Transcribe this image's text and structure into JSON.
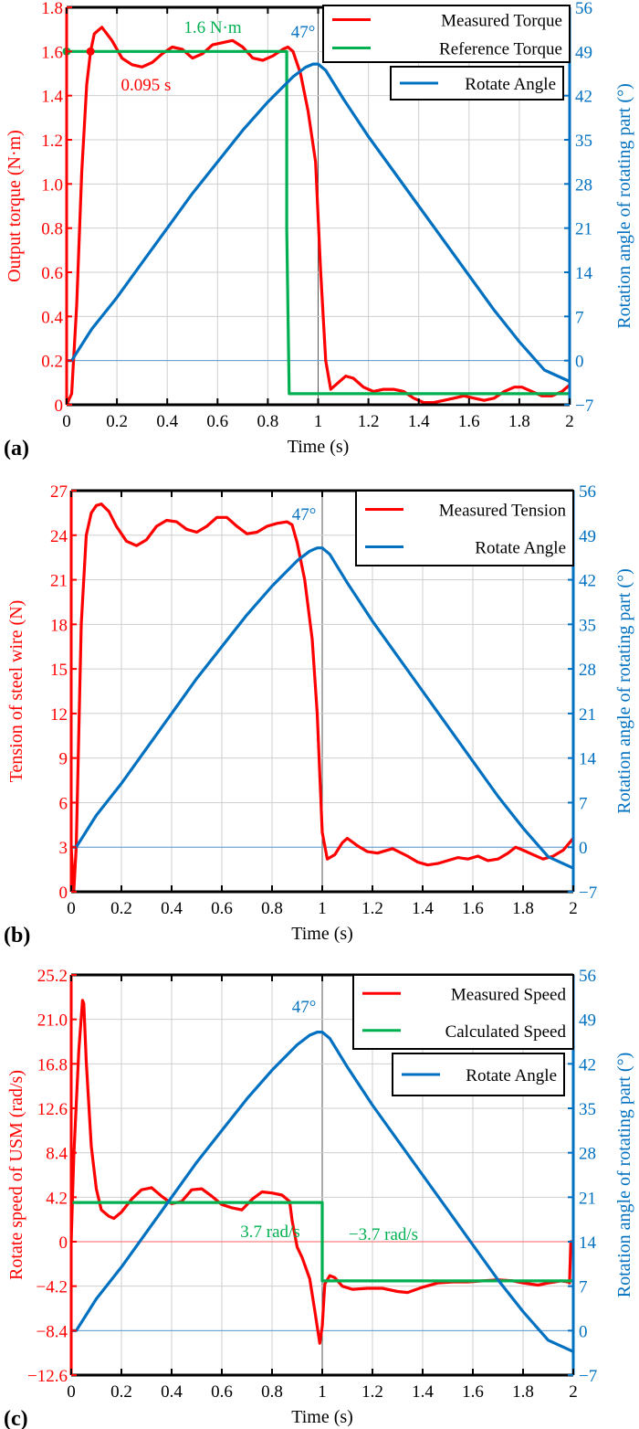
{
  "chart_data": [
    {
      "panel_label": "(a)",
      "type": "line",
      "xlabel": "Time (s)",
      "ylabel_left": "Output torque (N·m)",
      "ylabel_right": "Rotation angle of rotating part (°)",
      "xlim": [
        0,
        2
      ],
      "ylim_left": [
        0,
        1.8
      ],
      "ylim_right": [
        -7,
        56
      ],
      "x_ticks": [
        "0",
        "0.2",
        "0.4",
        "0.6",
        "0.8",
        "1",
        "1.2",
        "1.4",
        "1.6",
        "1.8",
        "2"
      ],
      "y_ticks_left": [
        "0",
        "0.2",
        "0.4",
        "0.6",
        "0.8",
        "1.0",
        "1.2",
        "1.4",
        "1.6",
        "1.8"
      ],
      "y_ticks_right": [
        "−7",
        "0",
        "7",
        "14",
        "21",
        "28",
        "35",
        "42",
        "49",
        "56"
      ],
      "grid": true,
      "legend_position": "top-right",
      "legend": [
        "Measured Torque",
        "Reference Torque"
      ],
      "legend2": [
        "Rotate Angle"
      ],
      "annotations": [
        {
          "text": "1.6 N·m",
          "color": "#00b050"
        },
        {
          "text": "47°",
          "color": "#0070c0"
        },
        {
          "text": "0.095 s",
          "color": "#ff0000"
        }
      ],
      "series": [
        {
          "name": "Measured Torque",
          "axis": "left",
          "color": "#ff0000",
          "x": [
            0,
            0.02,
            0.04,
            0.06,
            0.08,
            0.095,
            0.11,
            0.14,
            0.18,
            0.22,
            0.26,
            0.3,
            0.34,
            0.38,
            0.42,
            0.46,
            0.5,
            0.54,
            0.58,
            0.62,
            0.66,
            0.7,
            0.74,
            0.78,
            0.82,
            0.86,
            0.88,
            0.9,
            0.93,
            0.96,
            0.99,
            1.01,
            1.03,
            1.05,
            1.08,
            1.11,
            1.14,
            1.18,
            1.22,
            1.26,
            1.3,
            1.34,
            1.38,
            1.42,
            1.46,
            1.5,
            1.54,
            1.58,
            1.62,
            1.66,
            1.7,
            1.74,
            1.78,
            1.81,
            1.85,
            1.89,
            1.93,
            1.97,
            2.0
          ],
          "y": [
            0.0,
            0.05,
            0.45,
            1.05,
            1.45,
            1.6,
            1.68,
            1.71,
            1.65,
            1.57,
            1.54,
            1.53,
            1.55,
            1.59,
            1.62,
            1.61,
            1.57,
            1.59,
            1.63,
            1.64,
            1.65,
            1.62,
            1.57,
            1.56,
            1.58,
            1.61,
            1.62,
            1.6,
            1.5,
            1.33,
            1.1,
            0.6,
            0.2,
            0.07,
            0.1,
            0.13,
            0.12,
            0.08,
            0.06,
            0.07,
            0.07,
            0.06,
            0.03,
            0.01,
            0.01,
            0.02,
            0.03,
            0.04,
            0.03,
            0.02,
            0.03,
            0.06,
            0.08,
            0.08,
            0.06,
            0.04,
            0.04,
            0.06,
            0.09
          ]
        },
        {
          "name": "Reference Torque",
          "axis": "left",
          "color": "#00b050",
          "x": [
            0,
            0.875,
            0.875,
            0.885,
            2.0
          ],
          "y": [
            1.6,
            1.6,
            0.8,
            0.05,
            0.05
          ]
        },
        {
          "name": "Rotate Angle",
          "axis": "right",
          "color": "#0070c0",
          "x": [
            0,
            0.02,
            0.1,
            0.2,
            0.3,
            0.4,
            0.5,
            0.6,
            0.7,
            0.8,
            0.9,
            0.95,
            0.98,
            1.0,
            1.03,
            1.1,
            1.2,
            1.3,
            1.4,
            1.5,
            1.6,
            1.7,
            1.8,
            1.9,
            2.0
          ],
          "y": [
            0,
            0,
            5,
            10,
            15.5,
            21,
            26.5,
            31.5,
            36.5,
            41,
            45,
            46.5,
            47,
            47,
            46,
            41.5,
            35.5,
            30,
            24.5,
            19,
            13.5,
            8,
            3,
            -1.5,
            -3.3
          ]
        }
      ]
    },
    {
      "panel_label": "(b)",
      "type": "line",
      "xlabel": "Time (s)",
      "ylabel_left": "Tension of steel wire  (N)",
      "ylabel_right": "Rotation angle of rotating part (°)",
      "xlim": [
        0,
        2
      ],
      "ylim_left": [
        0,
        27
      ],
      "ylim_right": [
        -7,
        56
      ],
      "x_ticks": [
        "0",
        "0.2",
        "0.4",
        "0.6",
        "0.8",
        "1",
        "1.2",
        "1.4",
        "1.6",
        "1.8",
        "2"
      ],
      "y_ticks_left": [
        "0",
        "3",
        "6",
        "9",
        "12",
        "15",
        "18",
        "21",
        "24",
        "27"
      ],
      "y_ticks_right": [
        "−7",
        "0",
        "7",
        "14",
        "21",
        "28",
        "35",
        "42",
        "49",
        "56"
      ],
      "grid": true,
      "legend_position": "top-right",
      "legend": [
        "Measured Tension",
        "Rotate Angle"
      ],
      "annotations": [
        {
          "text": "47°",
          "color": "#0070c0"
        }
      ],
      "series": [
        {
          "name": "Measured Tension",
          "axis": "left",
          "color": "#ff0000",
          "x": [
            0,
            0.01,
            0.02,
            0.04,
            0.06,
            0.08,
            0.1,
            0.12,
            0.15,
            0.18,
            0.22,
            0.26,
            0.3,
            0.34,
            0.38,
            0.42,
            0.46,
            0.5,
            0.54,
            0.58,
            0.62,
            0.66,
            0.7,
            0.74,
            0.78,
            0.82,
            0.86,
            0.88,
            0.9,
            0.93,
            0.96,
            0.98,
            1.0,
            1.02,
            1.05,
            1.08,
            1.1,
            1.14,
            1.18,
            1.22,
            1.28,
            1.34,
            1.38,
            1.42,
            1.46,
            1.5,
            1.54,
            1.58,
            1.62,
            1.66,
            1.7,
            1.74,
            1.77,
            1.8,
            1.84,
            1.88,
            1.92,
            1.96,
            1.99,
            2.0
          ],
          "y": [
            3,
            0,
            3,
            18,
            24,
            25.5,
            26,
            26.1,
            25.6,
            24.6,
            23.6,
            23.3,
            23.7,
            24.6,
            25,
            24.9,
            24.4,
            24.2,
            24.6,
            25.2,
            25.2,
            24.6,
            24.1,
            24.2,
            24.6,
            24.8,
            24.9,
            24.7,
            23.5,
            21,
            17,
            12,
            4,
            2.2,
            2.5,
            3.3,
            3.6,
            3.1,
            2.7,
            2.6,
            2.9,
            2.4,
            2.0,
            1.8,
            1.9,
            2.1,
            2.3,
            2.2,
            2.4,
            2.1,
            2.2,
            2.6,
            3.0,
            2.8,
            2.5,
            2.2,
            2.4,
            2.8,
            3.4,
            3.6
          ]
        },
        {
          "name": "Rotate Angle",
          "axis": "right",
          "color": "#0070c0",
          "x": [
            0,
            0.02,
            0.1,
            0.2,
            0.3,
            0.4,
            0.5,
            0.6,
            0.7,
            0.8,
            0.9,
            0.95,
            0.98,
            1.0,
            1.03,
            1.1,
            1.2,
            1.3,
            1.4,
            1.5,
            1.6,
            1.7,
            1.8,
            1.9,
            2.0
          ],
          "y": [
            0,
            0,
            5,
            10,
            15.5,
            21,
            26.5,
            31.5,
            36.5,
            41,
            45,
            46.5,
            47,
            47,
            46,
            41.5,
            35.5,
            30,
            24.5,
            19,
            13.5,
            8,
            3,
            -1.5,
            -3.3
          ]
        }
      ]
    },
    {
      "panel_label": "(c)",
      "type": "line",
      "xlabel": "Time (s)",
      "ylabel_left": "Rotate speed of USM  (rad/s)",
      "ylabel_right": "Rotation angle of rotating part (°)",
      "xlim": [
        0,
        2
      ],
      "ylim_left": [
        -12.6,
        25.2
      ],
      "ylim_right": [
        -7,
        56
      ],
      "x_ticks": [
        "0",
        "0.2",
        "0.4",
        "0.6",
        "0.8",
        "1",
        "1.2",
        "1.4",
        "1.6",
        "1.8",
        "2"
      ],
      "y_ticks_left": [
        "−12.6",
        "−8.4",
        "−4.2",
        "0",
        "4.2",
        "8.4",
        "12.6",
        "16.8",
        "21.0",
        "25.2"
      ],
      "y_ticks_right": [
        "−7",
        "0",
        "7",
        "14",
        "21",
        "28",
        "35",
        "42",
        "49",
        "56"
      ],
      "grid": true,
      "legend_position": "top-right",
      "legend": [
        "Measured Speed",
        "Calculated Speed"
      ],
      "legend2": [
        "Rotate Angle"
      ],
      "annotations": [
        {
          "text": "47°",
          "color": "#0070c0"
        },
        {
          "text": "3.7 rad/s",
          "color": "#00b050"
        },
        {
          "text": "−3.7 rad/s",
          "color": "#00b050"
        }
      ],
      "series": [
        {
          "name": "Measured Speed",
          "axis": "left",
          "color": "#ff0000",
          "x": [
            0,
            0.01,
            0.03,
            0.045,
            0.05,
            0.06,
            0.08,
            0.1,
            0.12,
            0.15,
            0.17,
            0.2,
            0.24,
            0.28,
            0.32,
            0.36,
            0.4,
            0.44,
            0.48,
            0.52,
            0.56,
            0.6,
            0.64,
            0.68,
            0.72,
            0.76,
            0.8,
            0.84,
            0.87,
            0.88,
            0.9,
            0.92,
            0.95,
            0.97,
            0.99,
            1.0,
            1.01,
            1.03,
            1.05,
            1.08,
            1.12,
            1.18,
            1.24,
            1.3,
            1.34,
            1.4,
            1.46,
            1.52,
            1.58,
            1.64,
            1.7,
            1.76,
            1.8,
            1.86,
            1.9,
            1.95,
            1.98,
            1.985,
            1.99,
            2.0
          ],
          "y": [
            0,
            8,
            18,
            22.8,
            22.5,
            17,
            9,
            5,
            3,
            2.4,
            2.2,
            2.8,
            4,
            4.9,
            5.1,
            4.3,
            3.6,
            3.8,
            4.9,
            5.0,
            4.3,
            3.5,
            3.2,
            3.0,
            4.0,
            4.7,
            4.6,
            4.4,
            3.8,
            2,
            -0.5,
            -1.5,
            -3.5,
            -6.5,
            -9.6,
            -8,
            -4,
            -3.2,
            -3.4,
            -4.2,
            -4.5,
            -4.4,
            -4.4,
            -4.7,
            -4.8,
            -4.3,
            -3.9,
            -3.8,
            -3.8,
            -3.7,
            -3.6,
            -3.7,
            -3.9,
            -4.1,
            -3.9,
            -3.7,
            -3.8,
            -3.9,
            0,
            0
          ]
        },
        {
          "name": "Calculated Speed",
          "axis": "left",
          "color": "#00b050",
          "x": [
            0,
            1.0,
            1.0,
            2.0
          ],
          "y": [
            3.7,
            3.7,
            -3.7,
            -3.7
          ]
        },
        {
          "name": "Rotate Angle",
          "axis": "right",
          "color": "#0070c0",
          "x": [
            0,
            0.02,
            0.1,
            0.2,
            0.3,
            0.4,
            0.5,
            0.6,
            0.7,
            0.8,
            0.9,
            0.95,
            0.98,
            1.0,
            1.03,
            1.1,
            1.2,
            1.3,
            1.4,
            1.5,
            1.6,
            1.7,
            1.8,
            1.9,
            2.0
          ],
          "y": [
            0,
            0,
            5,
            10,
            15.5,
            21,
            26.5,
            31.5,
            36.5,
            41,
            45,
            46.5,
            47,
            47,
            46,
            41.5,
            35.5,
            30,
            24.5,
            19,
            13.5,
            8,
            3,
            -1.5,
            -3.3
          ]
        }
      ]
    }
  ]
}
